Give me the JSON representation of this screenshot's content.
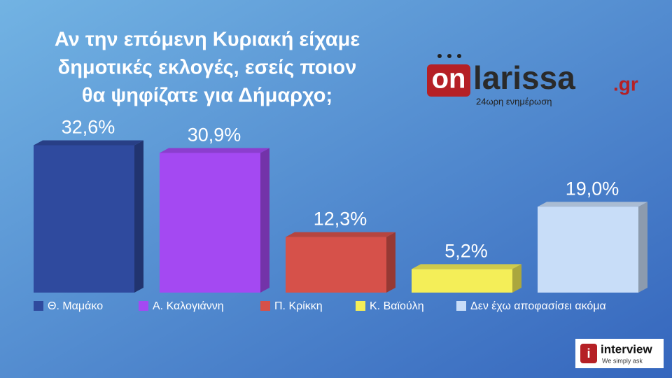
{
  "chart_data": {
    "type": "bar3d",
    "title": [
      "Αν την επόμενη Κυριακή είχαμε",
      "δημοτικές εκλογές, εσείς ποιον",
      "θα ψηφίζατε για Δήμαρχο;"
    ],
    "categories": [
      "Θ. Μαμάκο",
      "Α. Καλογιάννη",
      "Π. Κρίκκη",
      "Κ. Βαϊούλη",
      "Δεν έχω αποφασίσει ακόμα"
    ],
    "values": [
      32.6,
      30.9,
      12.3,
      5.2,
      19.0
    ],
    "value_labels": [
      "32,6%",
      "30,9%",
      "12,3%",
      "5,2%",
      "19,0%"
    ],
    "colors": [
      "#2f4a9e",
      "#a449f2",
      "#d6514a",
      "#f4ee58",
      "#c8ddf8"
    ],
    "ylim": [
      0,
      35
    ]
  },
  "logos": {
    "onlarissa": {
      "on": "on",
      "name": "larissa",
      "tld": ".gr",
      "tagline": "24ωρη ενημέρωση"
    },
    "interview": {
      "name": "interview",
      "tagline": "We simply ask"
    }
  }
}
